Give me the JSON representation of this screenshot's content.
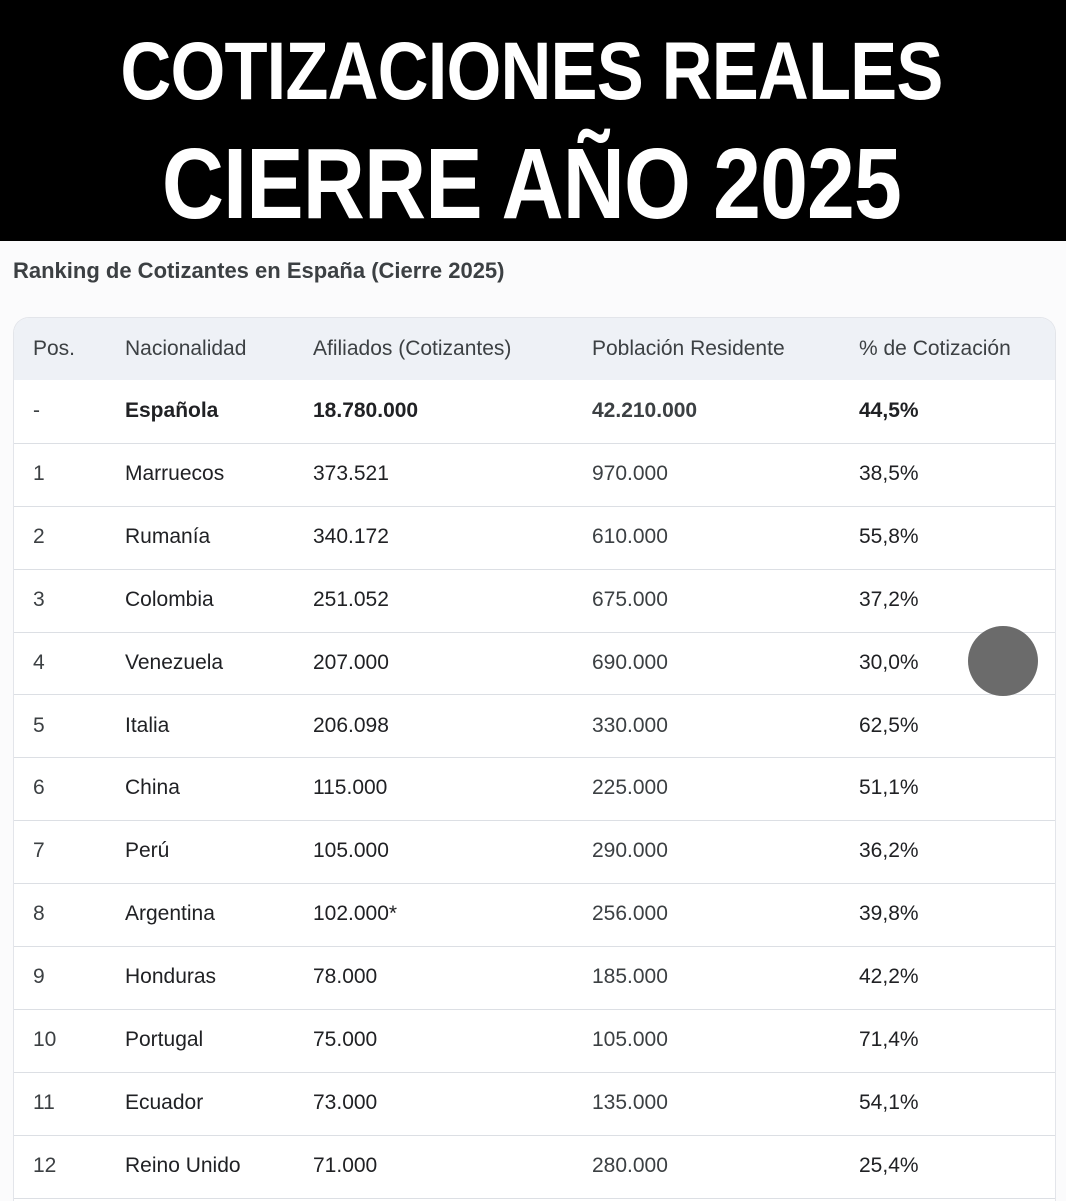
{
  "banner": {
    "line1": "COTIZACIONES REALES",
    "line2": "CIERRE AÑO 2025"
  },
  "subtitle": "Ranking de Cotizantes en España (Cierre 2025)",
  "table": {
    "headers": [
      "Pos.",
      "Nacionalidad",
      "Afiliados (Cotizantes)",
      "Población Residente",
      "% de Cotización"
    ],
    "rows": [
      {
        "pos": "-",
        "nat": "Española",
        "afi": "18.780.000",
        "pob": "42.210.000",
        "pct": "44,5%"
      },
      {
        "pos": "1",
        "nat": "Marruecos",
        "afi": "373.521",
        "pob": "970.000",
        "pct": "38,5%"
      },
      {
        "pos": "2",
        "nat": "Rumanía",
        "afi": "340.172",
        "pob": "610.000",
        "pct": "55,8%"
      },
      {
        "pos": "3",
        "nat": "Colombia",
        "afi": "251.052",
        "pob": "675.000",
        "pct": "37,2%"
      },
      {
        "pos": "4",
        "nat": "Venezuela",
        "afi": "207.000",
        "pob": "690.000",
        "pct": "30,0%"
      },
      {
        "pos": "5",
        "nat": "Italia",
        "afi": "206.098",
        "pob": "330.000",
        "pct": "62,5%"
      },
      {
        "pos": "6",
        "nat": "China",
        "afi": "115.000",
        "pob": "225.000",
        "pct": "51,1%"
      },
      {
        "pos": "7",
        "nat": "Perú",
        "afi": "105.000",
        "pob": "290.000",
        "pct": "36,2%"
      },
      {
        "pos": "8",
        "nat": "Argentina",
        "afi": "102.000*",
        "pob": "256.000",
        "pct": "39,8%"
      },
      {
        "pos": "9",
        "nat": "Honduras",
        "afi": "78.000",
        "pob": "185.000",
        "pct": "42,2%"
      },
      {
        "pos": "10",
        "nat": "Portugal",
        "afi": "75.000",
        "pob": "105.000",
        "pct": "71,4%"
      },
      {
        "pos": "11",
        "nat": "Ecuador",
        "afi": "73.000",
        "pob": "135.000",
        "pct": "54,1%"
      },
      {
        "pos": "12",
        "nat": "Reino Unido",
        "afi": "71.000",
        "pob": "280.000",
        "pct": "25,4%"
      }
    ]
  },
  "colors": {
    "banner_bg": "#000000",
    "banner_text": "#ffffff",
    "header_bg": "#eef1f6",
    "row_border": "#dcdfe4",
    "overlay_dot": "#6b6b6b"
  }
}
